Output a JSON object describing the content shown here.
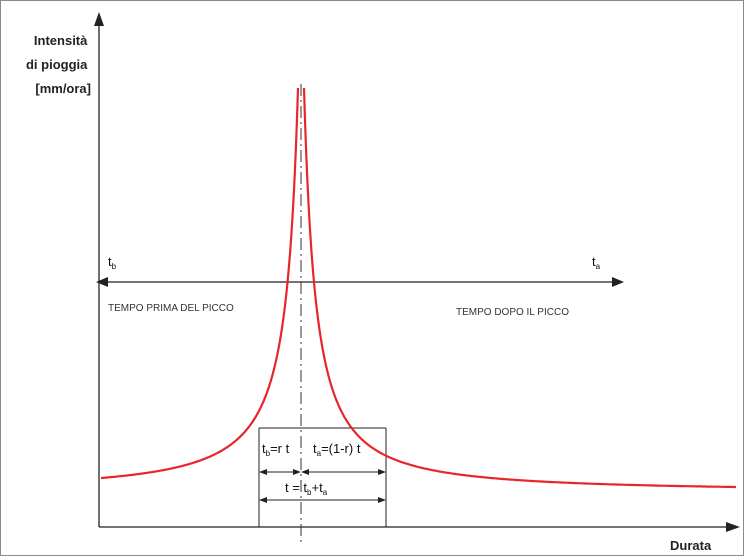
{
  "axes": {
    "y_label_lines": [
      "Intensità",
      "di pioggia",
      "[mm/ora]"
    ],
    "x_label": "Durata"
  },
  "labels": {
    "tb": {
      "main": "t",
      "sub": "b"
    },
    "ta": {
      "main": "t",
      "sub": "a"
    },
    "before_peak": "TEMPO PRIMA DEL PICCO",
    "after_peak": "TEMPO DOPO IL PICCO",
    "tb_eq": {
      "main": "t",
      "sub": "b",
      "rest": "=r t"
    },
    "ta_eq": {
      "main": "t",
      "sub": "a",
      "rest": "=(1-r) t"
    },
    "total_eq": {
      "pre": "t = t",
      "sub1": "b",
      "mid": "+t",
      "sub2": "a"
    }
  },
  "colors": {
    "curve": "#e8262a",
    "axes": "#222222",
    "frame": "#888888"
  },
  "curve": {
    "peak_fraction_r": 0.3
  }
}
